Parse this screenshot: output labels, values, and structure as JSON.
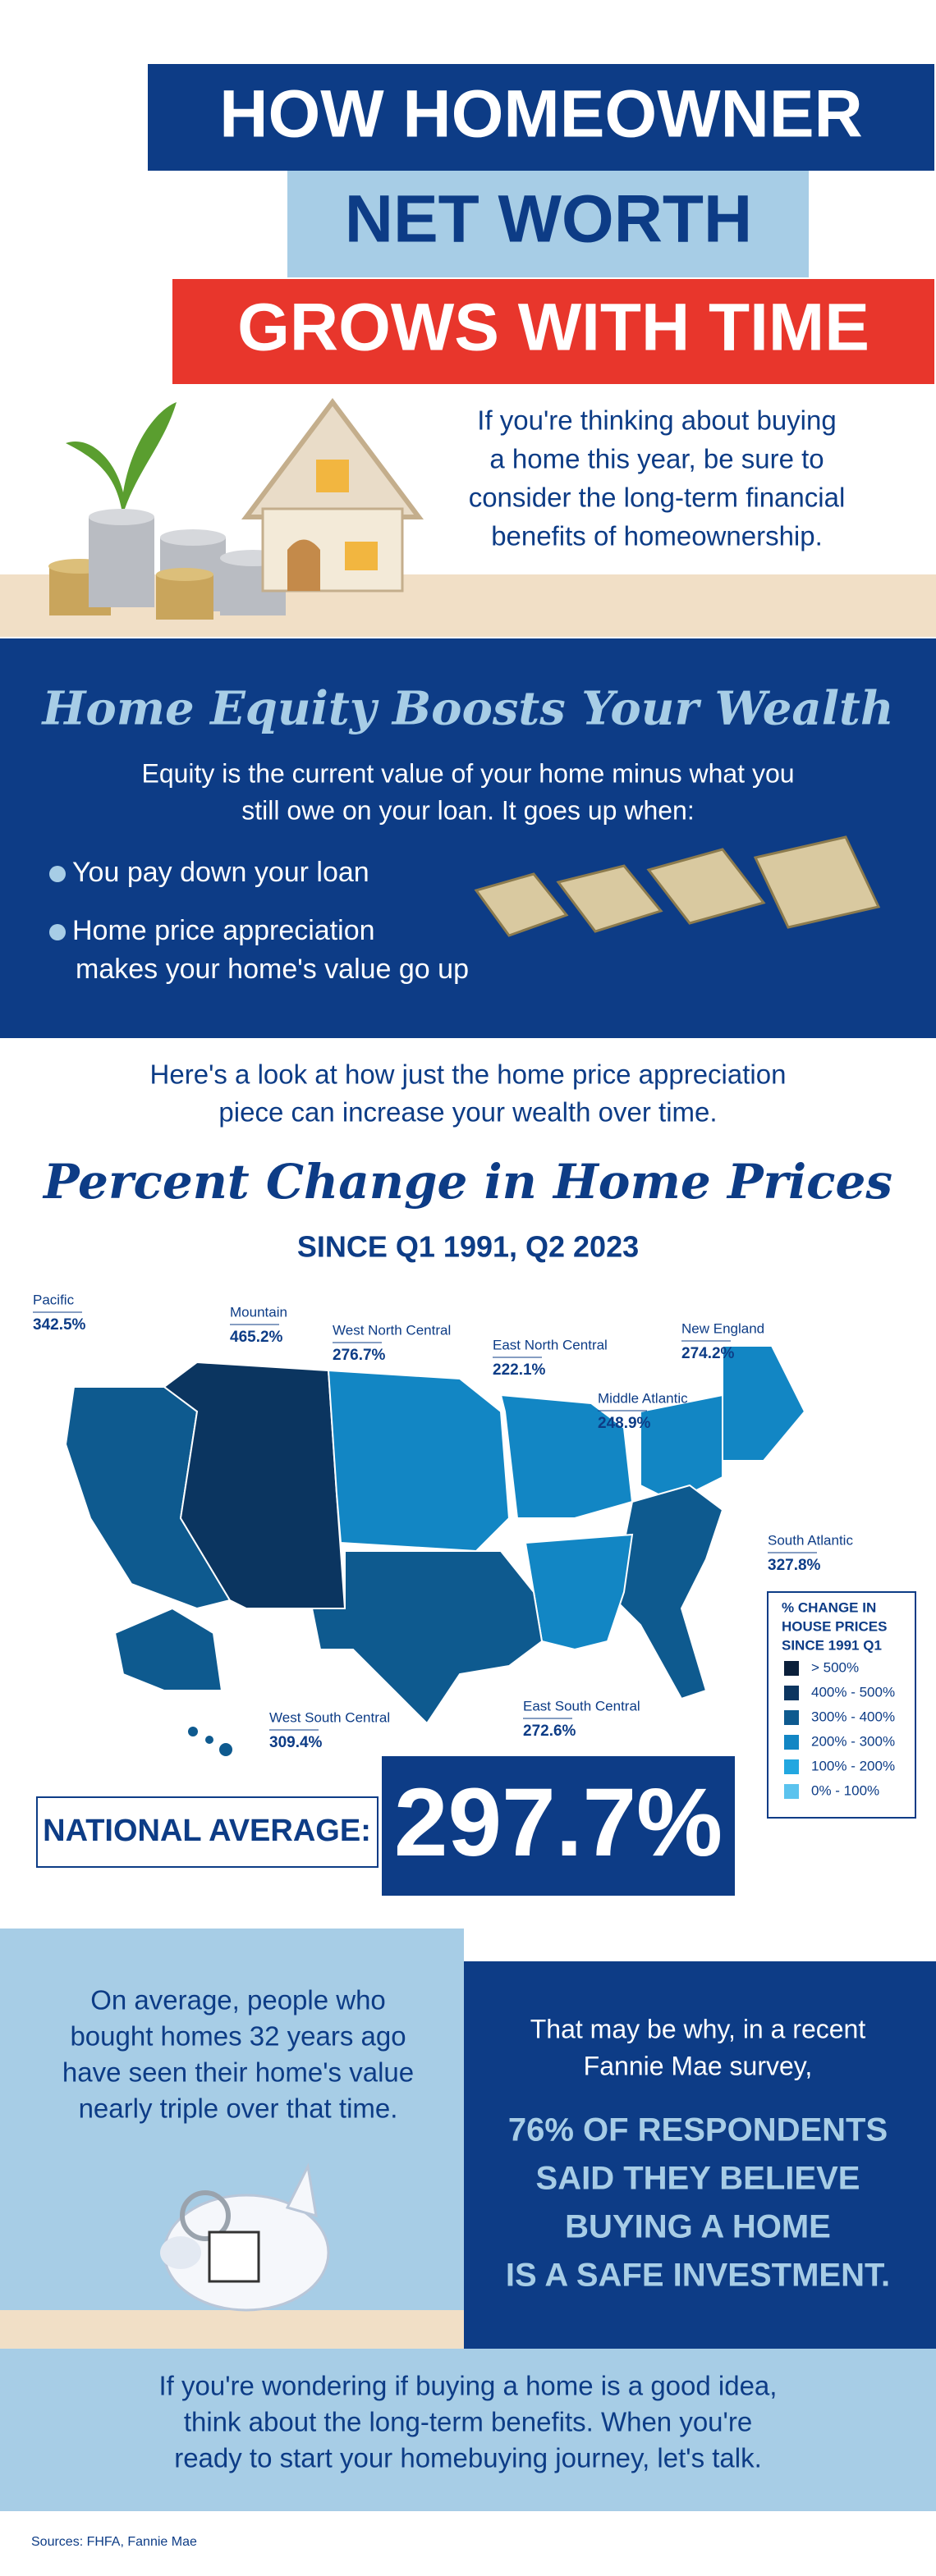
{
  "header": {
    "title_lines": [
      "HOW HOMEOWNER",
      "NET WORTH",
      "GROWS WITH TIME"
    ],
    "intro_lines": [
      "If you're thinking about buying",
      "a home this year, be sure to",
      "consider the long-term financial",
      "benefits of homeownership."
    ]
  },
  "equity": {
    "heading": "Home Equity Boosts Your Wealth",
    "text_lines": [
      "Equity is the current value of your home minus what you",
      "still owe on your loan. It goes up when:"
    ],
    "bullets": [
      [
        "You pay down your loan"
      ],
      [
        "Home price appreciation",
        "makes your home's value go up"
      ]
    ]
  },
  "appreciation": {
    "intro_lines": [
      "Here's a look at how just the home price appreciation",
      "piece can increase your wealth over time."
    ],
    "title": "Percent Change in Home Prices",
    "subtitle": "SINCE Q1 1991, Q2 2023",
    "regions": [
      {
        "name": "Pacific",
        "value": "342.5%"
      },
      {
        "name": "Mountain",
        "value": "465.2%"
      },
      {
        "name": "West North Central",
        "value": "276.7%"
      },
      {
        "name": "East North Central",
        "value": "222.1%"
      },
      {
        "name": "New England",
        "value": "274.2%"
      },
      {
        "name": "Middle Atlantic",
        "value": "248.9%"
      },
      {
        "name": "South Atlantic",
        "value": "327.8%"
      },
      {
        "name": "East South Central",
        "value": "272.6%"
      },
      {
        "name": "West South Central",
        "value": "309.4%"
      }
    ],
    "legend": {
      "title_lines": [
        "% CHANGE IN",
        "HOUSE PRICES",
        "SINCE 1991 Q1"
      ],
      "items": [
        "> 500%",
        "400% - 500%",
        "300% - 400%",
        "200% - 300%",
        "100% - 200%",
        "0% - 100%"
      ]
    },
    "national_average": {
      "label": "NATIONAL AVERAGE:",
      "value": "297.7%"
    }
  },
  "conclusion": {
    "left_lines": [
      "On average, people who",
      "bought homes 32 years ago",
      "have seen their home's value",
      "nearly triple over that time."
    ],
    "right_lines": [
      "That may be why, in a recent",
      "Fannie Mae survey,"
    ],
    "emphasis_lines": [
      "76% OF RESPONDENTS",
      "SAID THEY BELIEVE",
      "BUYING A HOME",
      "IS A SAFE INVESTMENT."
    ],
    "closing_lines": [
      "If you're wondering if buying a home is a good idea,",
      "think about the long-term benefits. When you're",
      "ready to start your homebuying journey, let's talk."
    ]
  },
  "sources": "Sources: FHFA, Fannie Mae"
}
